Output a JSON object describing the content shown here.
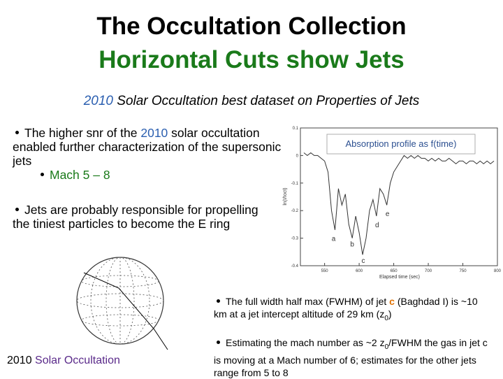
{
  "title": "The Occultation Collection",
  "subtitle": "Horizontal Cuts show Jets",
  "tagline": {
    "year": "2010",
    "text": "Solar Occultation best dataset on Properties of Jets"
  },
  "bullets": [
    {
      "parts": [
        "The higher snr of the",
        "2010",
        "solar occultation enabled further characterization of the supersonic jets"
      ],
      "sub": "Mach 5 – 8"
    },
    {
      "text": "Jets are probably responsible for propelling the tiniest particles to become the E ring"
    }
  ],
  "notes": [
    {
      "parts": [
        "The full width half max (FWHM) of jet",
        "c",
        "(Baghdad I) is ~10 km at a jet intercept altitude of 29 km (z",
        "0",
        ")"
      ]
    },
    {
      "parts": [
        "Estimating the mach number as ~2 z",
        "0",
        "/FWHM the gas in jet c is moving at a Mach number of 6; estimates for the other jets range from 5 to 8"
      ]
    }
  ],
  "caption": {
    "year": "2010",
    "text": "Solar Occultation"
  },
  "chart_data": {
    "type": "line",
    "title": "Absorption profile as f(time)",
    "x_label": "Elapsed time (sec)",
    "y_label": "ln(I/Ioct)",
    "color": "#333333",
    "x": [
      520,
      525,
      530,
      535,
      540,
      545,
      550,
      555,
      560,
      565,
      570,
      575,
      580,
      585,
      590,
      595,
      600,
      605,
      610,
      615,
      620,
      625,
      630,
      635,
      640,
      645,
      650,
      655,
      660,
      665,
      670,
      675,
      680,
      685,
      690,
      695,
      700,
      705,
      710,
      715,
      720,
      725,
      730,
      735,
      740,
      745,
      750,
      755,
      760,
      765,
      770,
      775,
      780,
      785,
      790,
      795
    ],
    "values": [
      0.01,
      0,
      0.01,
      0,
      0,
      -0.01,
      -0.02,
      -0.06,
      -0.2,
      -0.27,
      -0.12,
      -0.18,
      -0.14,
      -0.25,
      -0.3,
      -0.22,
      -0.28,
      -0.36,
      -0.3,
      -0.2,
      -0.16,
      -0.22,
      -0.12,
      -0.14,
      -0.18,
      -0.1,
      -0.06,
      -0.04,
      -0.02,
      0,
      -0.01,
      0,
      -0.01,
      0,
      -0.01,
      -0.01,
      -0.02,
      -0.01,
      -0.02,
      -0.01,
      -0.02,
      -0.02,
      -0.01,
      -0.02,
      -0.03,
      -0.02,
      -0.02,
      -0.03,
      -0.02,
      -0.02,
      -0.03,
      -0.02,
      -0.03,
      -0.02,
      -0.03,
      -0.02
    ],
    "xlim": [
      515,
      800
    ],
    "ylim": [
      -0.4,
      0.1
    ],
    "xticks": [
      550,
      600,
      650,
      700,
      750,
      800
    ],
    "yticks": [
      0.1,
      0,
      -0.1,
      -0.2,
      -0.3,
      -0.4
    ],
    "annotations": [
      {
        "text": "a",
        "x": 563,
        "y": -0.31
      },
      {
        "text": "b",
        "x": 590,
        "y": -0.33
      },
      {
        "text": "c",
        "x": 606,
        "y": -0.39
      },
      {
        "text": "d",
        "x": 626,
        "y": -0.26
      },
      {
        "text": "e",
        "x": 641,
        "y": -0.22
      }
    ]
  }
}
